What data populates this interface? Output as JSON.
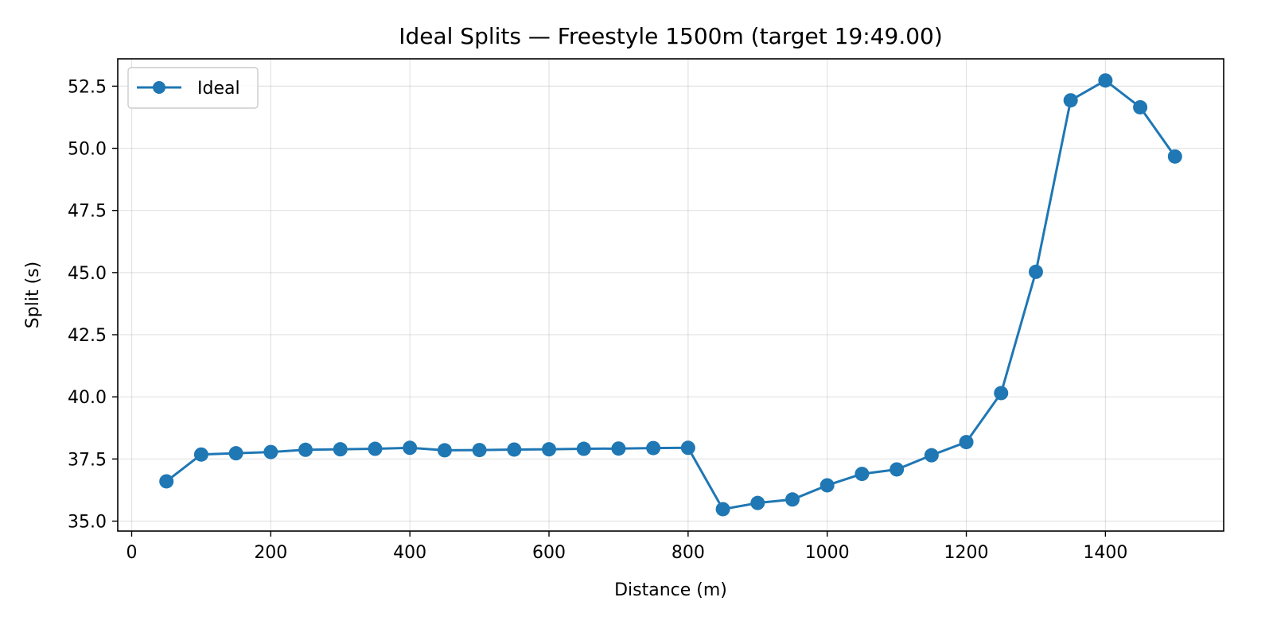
{
  "chart_data": {
    "type": "line",
    "title": "Ideal Splits — Freestyle 1500m (target 19:49.00)",
    "xlabel": "Distance (m)",
    "ylabel": "Split (s)",
    "xlim": [
      -20,
      1570
    ],
    "ylim": [
      34.6,
      53.6
    ],
    "xticks": [
      0,
      200,
      400,
      600,
      800,
      1000,
      1200,
      1400
    ],
    "yticks": [
      35.0,
      37.5,
      40.0,
      42.5,
      45.0,
      47.5,
      50.0,
      52.5
    ],
    "ytick_labels": [
      "35.0",
      "37.5",
      "40.0",
      "42.5",
      "45.0",
      "47.5",
      "50.0",
      "52.5"
    ],
    "grid": true,
    "legend_position": "upper-left",
    "series": [
      {
        "name": "Ideal",
        "color": "#1f77b4",
        "marker": "circle",
        "x": [
          50,
          100,
          150,
          200,
          250,
          300,
          350,
          400,
          450,
          500,
          550,
          600,
          650,
          700,
          750,
          800,
          850,
          900,
          950,
          1000,
          1050,
          1100,
          1150,
          1200,
          1250,
          1300,
          1350,
          1400,
          1450,
          1500
        ],
        "y": [
          36.6,
          37.68,
          37.73,
          37.78,
          37.87,
          37.89,
          37.91,
          37.95,
          37.85,
          37.86,
          37.88,
          37.89,
          37.91,
          37.92,
          37.94,
          37.95,
          35.48,
          35.73,
          35.87,
          36.44,
          36.9,
          37.08,
          37.65,
          38.18,
          40.15,
          45.03,
          51.93,
          52.73,
          51.65,
          49.67
        ]
      }
    ]
  }
}
